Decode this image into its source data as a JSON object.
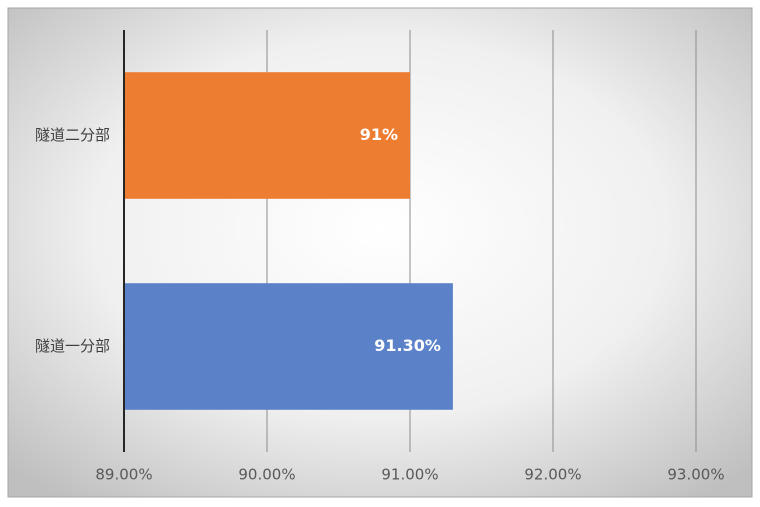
{
  "chart_data": {
    "type": "bar",
    "orientation": "horizontal",
    "categories": [
      "隧道一分部",
      "隧道二分部"
    ],
    "values": [
      91.3,
      91
    ],
    "value_labels": [
      "91.30%",
      "91%"
    ],
    "colors": [
      "#5b82c9",
      "#ed7d31"
    ],
    "xlim": [
      89,
      93
    ],
    "xticks": [
      {
        "value": 89,
        "label": "89.00%"
      },
      {
        "value": 90,
        "label": "90.00%"
      },
      {
        "value": 91,
        "label": "91.00%"
      },
      {
        "value": 92,
        "label": "92.00%"
      },
      {
        "value": 93,
        "label": "93.00%"
      }
    ],
    "grid": true
  }
}
